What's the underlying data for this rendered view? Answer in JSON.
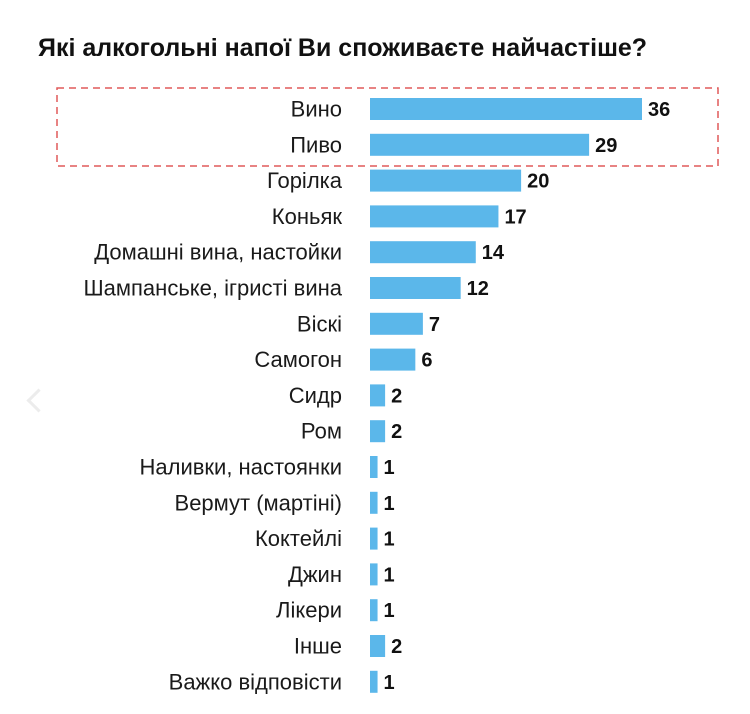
{
  "chart_data": {
    "type": "bar",
    "orientation": "horizontal",
    "title": "Які алкогольні напої Ви споживаєте найчастіше?",
    "categories": [
      "Вино",
      "Пиво",
      "Горілка",
      "Коньяк",
      "Домашні вина, настойки",
      "Шампанське, ігристі вина",
      "Віскі",
      "Самогон",
      "Сидр",
      "Ром",
      "Наливки, настоянки",
      "Вермут (мартіні)",
      "Коктейлі",
      "Джин",
      "Лікери",
      "Інше",
      "Важко відповісти"
    ],
    "values": [
      36,
      29,
      20,
      17,
      14,
      12,
      7,
      6,
      2,
      2,
      1,
      1,
      1,
      1,
      1,
      2,
      1
    ],
    "highlighted_categories": [
      "Вино",
      "Пиво"
    ],
    "bar_color": "#5bb7ea",
    "highlight_border_color": "#e05a5a",
    "xlabel": "",
    "ylabel": "",
    "xlim": [
      0,
      36
    ],
    "grid": false,
    "legend": "none"
  }
}
